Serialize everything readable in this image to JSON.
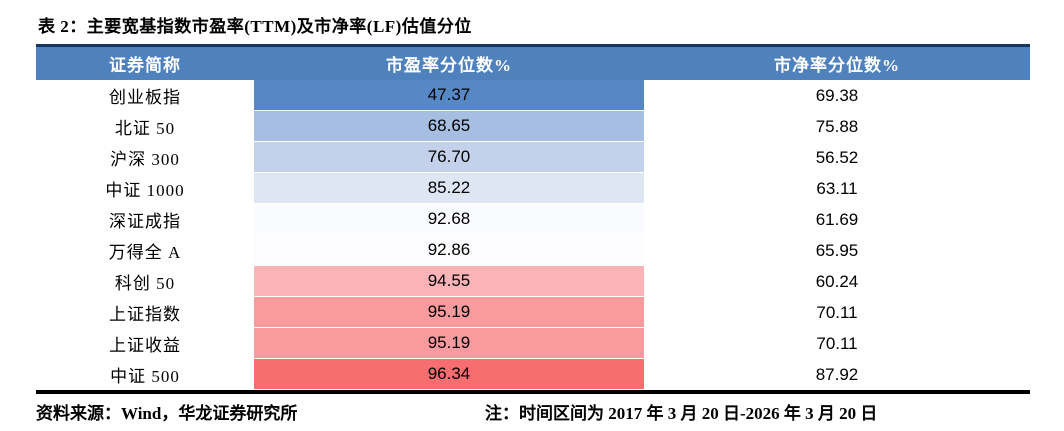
{
  "title": "表 2：主要宽基指数市盈率(TTM)及市净率(LF)估值分位",
  "table": {
    "columns": [
      "证券简称",
      "市盈率分位数%",
      "市净率分位数%"
    ],
    "rows": [
      {
        "name": "创业板指",
        "pe": "47.37",
        "pb": "69.38",
        "pe_color": "#5588c5"
      },
      {
        "name": "北证 50",
        "pe": "68.65",
        "pb": "75.88",
        "pe_color": "#a6bee1"
      },
      {
        "name": "沪深 300",
        "pe": "76.70",
        "pb": "56.52",
        "pe_color": "#c3d2ea"
      },
      {
        "name": "中证 1000",
        "pe": "85.22",
        "pb": "63.11",
        "pe_color": "#dee6f3"
      },
      {
        "name": "深证成指",
        "pe": "92.68",
        "pb": "61.69",
        "pe_color": "#fafbfe"
      },
      {
        "name": "万得全 A",
        "pe": "92.86",
        "pb": "65.95",
        "pe_color": "#fcfbfd"
      },
      {
        "name": "科创 50",
        "pe": "94.55",
        "pb": "60.24",
        "pe_color": "#fab3b7"
      },
      {
        "name": "上证指数",
        "pe": "95.19",
        "pb": "70.11",
        "pe_color": "#f99b9e"
      },
      {
        "name": "上证收益",
        "pe": "95.19",
        "pb": "70.11",
        "pe_color": "#f99b9e"
      },
      {
        "name": "中证 500",
        "pe": "96.34",
        "pb": "87.92",
        "pe_color": "#f76d70"
      }
    ]
  },
  "footer": {
    "source": "资料来源：Wind，华龙证券研究所",
    "note": "注：时间区间为 2017 年 3 月 20 日-2026 年 3 月 20 日"
  },
  "colors": {
    "header_bg": "#4f81bd",
    "header_text": "#ffffff",
    "rule_top": "#17375e",
    "rule_bottom": "#000000"
  }
}
